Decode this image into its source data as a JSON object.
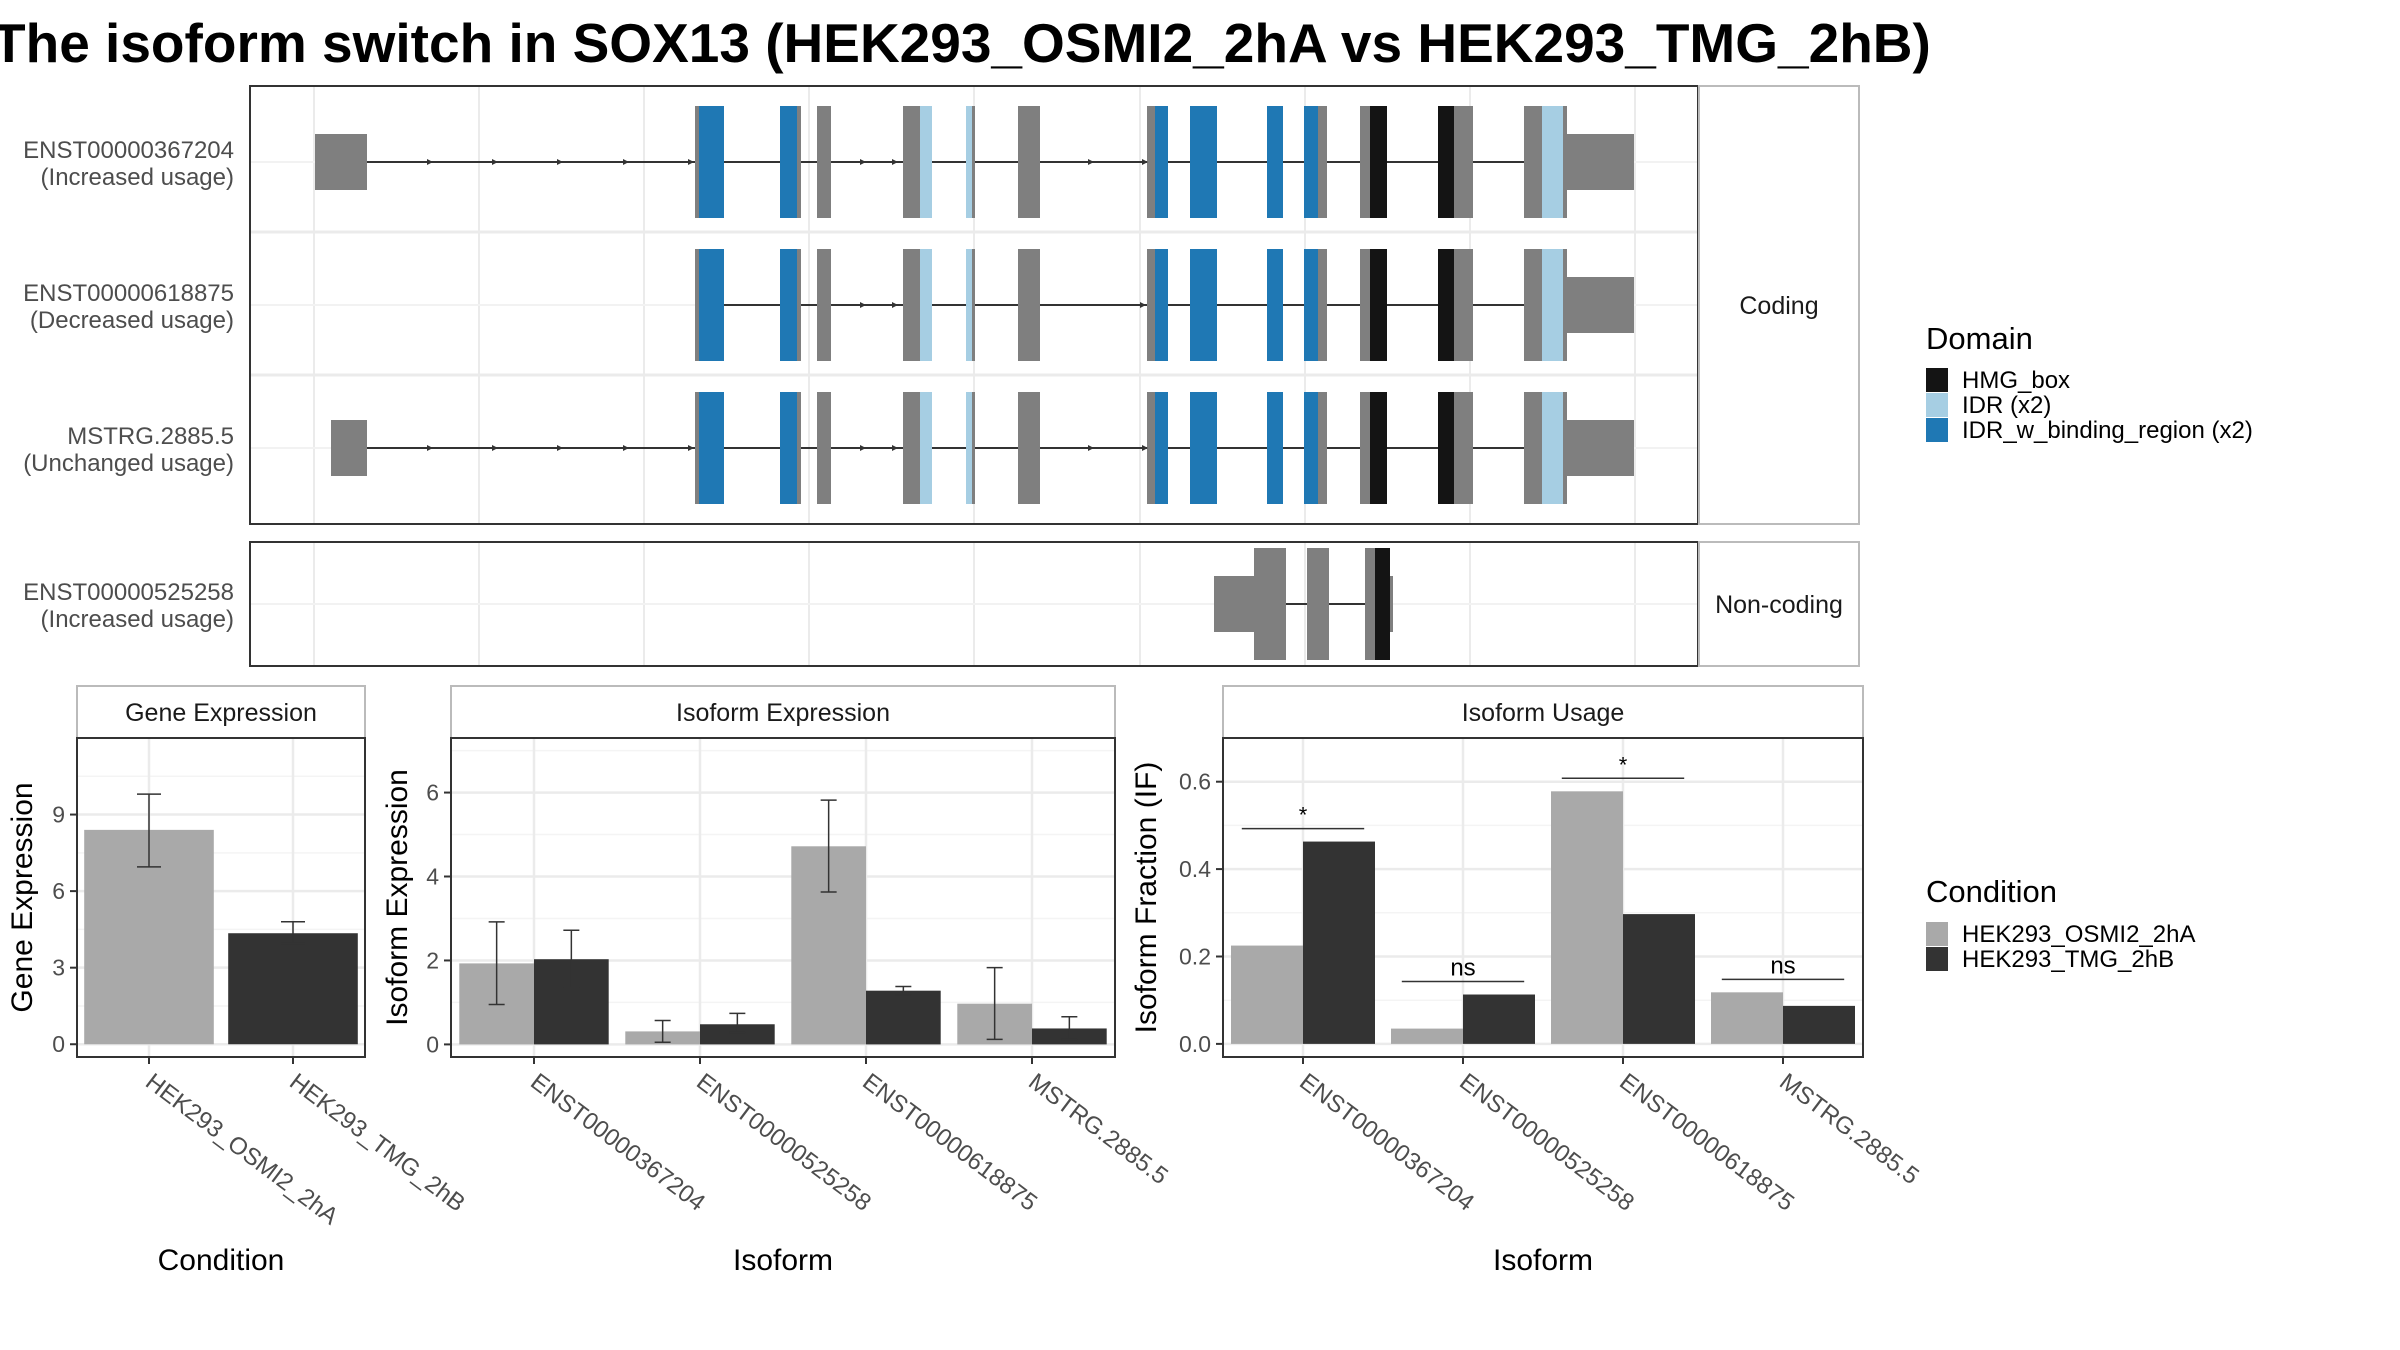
{
  "title": "The isoform switch in SOX13 (HEK293_OSMI2_2hA vs HEK293_TMG_2hB)",
  "colors": {
    "exon": "#7f7f7f",
    "hmg_box": "#141414",
    "idr": "#a6cee3",
    "idr_binding": "#1f78b4",
    "cond_a": "#a9a9a9",
    "cond_b": "#333333",
    "strip_bg": "#ffffff",
    "grid": "#ebebeb"
  },
  "structure": {
    "facets": [
      "Coding",
      "Non-coding"
    ],
    "transcripts": [
      {
        "id": "ENST00000367204",
        "note": "(Increased usage)",
        "facet": "Coding"
      },
      {
        "id": "ENST00000618875",
        "note": "(Decreased usage)",
        "facet": "Coding"
      },
      {
        "id": "MSTRG.2885.5",
        "note": "(Unchanged usage)",
        "facet": "Coding"
      },
      {
        "id": "ENST00000525258",
        "note": "(Increased usage)",
        "facet": "Non-coding"
      }
    ]
  },
  "legend_domain": {
    "title": "Domain",
    "items": [
      {
        "label": "HMG_box",
        "color": "#141414"
      },
      {
        "label": "IDR (x2)",
        "color": "#a6cee3"
      },
      {
        "label": "IDR_w_binding_region (x2)",
        "color": "#1f78b4"
      }
    ]
  },
  "legend_condition": {
    "title": "Condition",
    "items": [
      {
        "label": "HEK293_OSMI2_2hA",
        "color": "#a9a9a9"
      },
      {
        "label": "HEK293_TMG_2hB",
        "color": "#333333"
      }
    ]
  },
  "chart_data": [
    {
      "type": "bar",
      "title": "Gene Expression",
      "xlabel": "Condition",
      "ylabel": "Gene Expression",
      "categories": [
        "HEK293_OSMI2_2hA",
        "HEK293_TMG_2hB"
      ],
      "values": [
        8.4,
        4.35
      ],
      "errors": [
        [
          6.95,
          9.8
        ],
        [
          3.95,
          4.8
        ]
      ],
      "ylim": [
        -0.5,
        12.0
      ],
      "yticks": [
        0,
        3,
        6,
        9
      ],
      "grid": true
    },
    {
      "type": "bar",
      "title": "Isoform Expression",
      "xlabel": "Isoform",
      "ylabel": "Isoform Expression",
      "categories": [
        "ENST00000367204",
        "ENST00000525258",
        "ENST00000618875",
        "MSTRG.2885.5"
      ],
      "series": [
        {
          "name": "HEK293_OSMI2_2hA",
          "values": [
            1.93,
            0.31,
            4.72,
            0.97
          ],
          "errors": [
            [
              0.95,
              2.92
            ],
            [
              0.05,
              0.57
            ],
            [
              3.63,
              5.82
            ],
            [
              0.12,
              1.83
            ]
          ]
        },
        {
          "name": "HEK293_TMG_2hB",
          "values": [
            2.03,
            0.48,
            1.28,
            0.38
          ],
          "errors": [
            [
              1.35,
              2.72
            ],
            [
              0.28,
              0.74
            ],
            [
              1.18,
              1.38
            ],
            [
              0.12,
              0.66
            ]
          ]
        }
      ],
      "ylim": [
        -0.3,
        7.3
      ],
      "yticks": [
        0,
        2,
        4,
        6
      ],
      "grid": true
    },
    {
      "type": "bar",
      "title": "Isoform Usage",
      "xlabel": "Isoform",
      "ylabel": "Isoform Fraction (IF)",
      "categories": [
        "ENST00000367204",
        "ENST00000525258",
        "ENST00000618875",
        "MSTRG.2885.5"
      ],
      "series": [
        {
          "name": "HEK293_OSMI2_2hA",
          "values": [
            0.225,
            0.035,
            0.578,
            0.118
          ]
        },
        {
          "name": "HEK293_TMG_2hB",
          "values": [
            0.463,
            0.113,
            0.297,
            0.087
          ]
        }
      ],
      "significance": [
        "*",
        "ns",
        "*",
        "ns"
      ],
      "ylim": [
        -0.03,
        0.7
      ],
      "yticks": [
        0.0,
        0.2,
        0.4,
        0.6
      ],
      "yticklabels": [
        "0.0",
        "0.2",
        "0.4",
        "0.6"
      ],
      "grid": true
    }
  ]
}
